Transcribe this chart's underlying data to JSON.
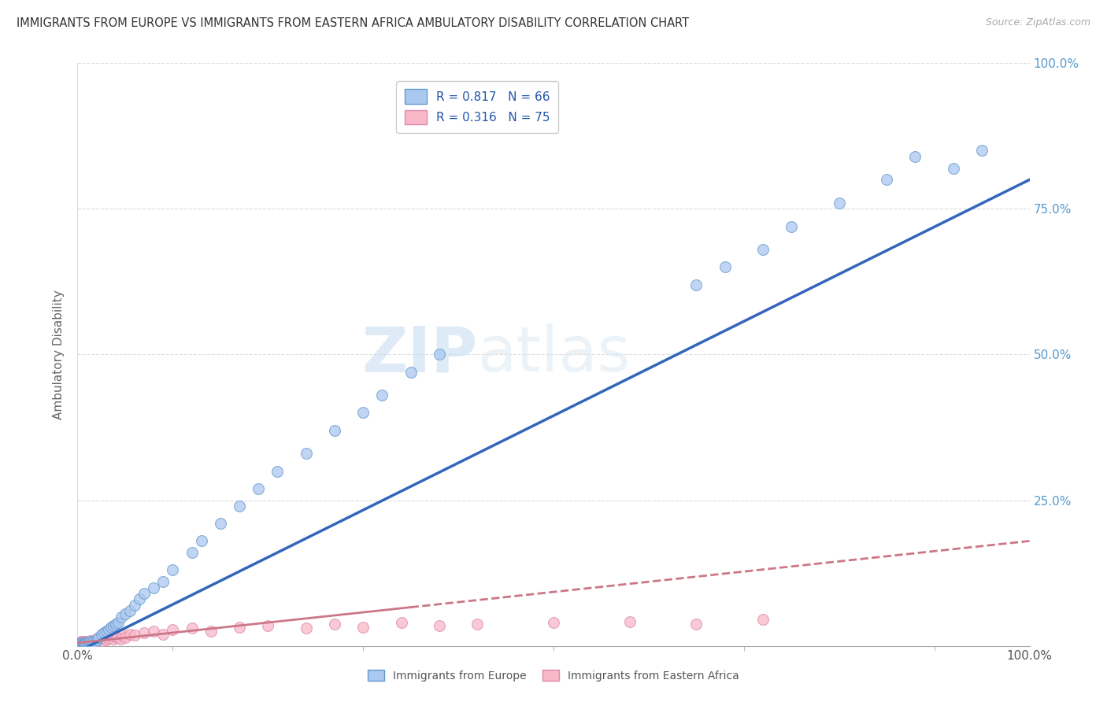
{
  "title": "IMMIGRANTS FROM EUROPE VS IMMIGRANTS FROM EASTERN AFRICA AMBULATORY DISABILITY CORRELATION CHART",
  "source": "Source: ZipAtlas.com",
  "ylabel": "Ambulatory Disability",
  "legend_line1": "R = 0.817   N = 66",
  "legend_line2": "R = 0.316   N = 75",
  "watermark_zip": "ZIP",
  "watermark_atlas": "atlas",
  "blue_face_color": "#aac8f0",
  "blue_edge_color": "#6699cc",
  "pink_face_color": "#f8b8c8",
  "pink_edge_color": "#dd88aa",
  "blue_line_color": "#3366bb",
  "pink_line_color": "#cc7788",
  "title_color": "#333333",
  "source_color": "#aaaaaa",
  "legend_text_color": "#2255aa",
  "axis_color": "#cccccc",
  "right_tick_color": "#5599cc",
  "europe_x": [
    0.0,
    0.001,
    0.001,
    0.002,
    0.002,
    0.003,
    0.003,
    0.004,
    0.004,
    0.005,
    0.005,
    0.006,
    0.006,
    0.007,
    0.007,
    0.008,
    0.008,
    0.009,
    0.01,
    0.011,
    0.012,
    0.013,
    0.014,
    0.015,
    0.016,
    0.018,
    0.02,
    0.022,
    0.025,
    0.028,
    0.03,
    0.033,
    0.035,
    0.038,
    0.04,
    0.043,
    0.046,
    0.05,
    0.055,
    0.06,
    0.065,
    0.07,
    0.08,
    0.09,
    0.1,
    0.12,
    0.13,
    0.15,
    0.17,
    0.19,
    0.21,
    0.24,
    0.27,
    0.3,
    0.32,
    0.35,
    0.38,
    0.65,
    0.68,
    0.72,
    0.75,
    0.8,
    0.85,
    0.88,
    0.92,
    0.95
  ],
  "europe_y": [
    0.002,
    0.001,
    0.003,
    0.002,
    0.004,
    0.001,
    0.003,
    0.002,
    0.005,
    0.003,
    0.001,
    0.004,
    0.002,
    0.001,
    0.003,
    0.004,
    0.002,
    0.005,
    0.003,
    0.006,
    0.004,
    0.007,
    0.005,
    0.003,
    0.006,
    0.004,
    0.01,
    0.015,
    0.02,
    0.022,
    0.025,
    0.028,
    0.032,
    0.035,
    0.038,
    0.04,
    0.05,
    0.055,
    0.06,
    0.07,
    0.08,
    0.09,
    0.1,
    0.11,
    0.13,
    0.16,
    0.18,
    0.21,
    0.24,
    0.27,
    0.3,
    0.33,
    0.37,
    0.4,
    0.43,
    0.47,
    0.5,
    0.62,
    0.65,
    0.68,
    0.72,
    0.76,
    0.8,
    0.84,
    0.82,
    0.85
  ],
  "africa_x": [
    0.0,
    0.0,
    0.001,
    0.001,
    0.001,
    0.002,
    0.002,
    0.002,
    0.002,
    0.003,
    0.003,
    0.003,
    0.003,
    0.004,
    0.004,
    0.004,
    0.004,
    0.005,
    0.005,
    0.005,
    0.005,
    0.006,
    0.006,
    0.006,
    0.007,
    0.007,
    0.007,
    0.008,
    0.008,
    0.009,
    0.009,
    0.01,
    0.01,
    0.011,
    0.011,
    0.012,
    0.013,
    0.014,
    0.015,
    0.016,
    0.017,
    0.018,
    0.02,
    0.022,
    0.025,
    0.028,
    0.03,
    0.033,
    0.035,
    0.038,
    0.04,
    0.042,
    0.045,
    0.048,
    0.05,
    0.055,
    0.06,
    0.07,
    0.08,
    0.09,
    0.1,
    0.12,
    0.14,
    0.17,
    0.2,
    0.24,
    0.27,
    0.3,
    0.34,
    0.38,
    0.42,
    0.5,
    0.58,
    0.65,
    0.72
  ],
  "africa_y": [
    0.001,
    0.003,
    0.002,
    0.004,
    0.001,
    0.002,
    0.005,
    0.003,
    0.001,
    0.004,
    0.002,
    0.006,
    0.001,
    0.003,
    0.005,
    0.002,
    0.007,
    0.003,
    0.005,
    0.001,
    0.006,
    0.004,
    0.002,
    0.007,
    0.003,
    0.005,
    0.001,
    0.006,
    0.004,
    0.002,
    0.007,
    0.004,
    0.008,
    0.003,
    0.006,
    0.005,
    0.007,
    0.009,
    0.006,
    0.008,
    0.005,
    0.01,
    0.008,
    0.012,
    0.007,
    0.015,
    0.01,
    0.013,
    0.018,
    0.012,
    0.016,
    0.014,
    0.012,
    0.018,
    0.015,
    0.02,
    0.018,
    0.022,
    0.025,
    0.02,
    0.028,
    0.03,
    0.025,
    0.032,
    0.035,
    0.03,
    0.038,
    0.032,
    0.04,
    0.035,
    0.038,
    0.04,
    0.042,
    0.038,
    0.045
  ],
  "eu_line_x0": 0.0,
  "eu_line_y0": -0.01,
  "eu_line_x1": 1.0,
  "eu_line_y1": 0.8,
  "af_line_x0": 0.0,
  "af_line_y0": 0.005,
  "af_line_x1": 1.0,
  "af_line_y1": 0.18,
  "xlim": [
    0.0,
    1.0
  ],
  "ylim": [
    0.0,
    1.0
  ]
}
